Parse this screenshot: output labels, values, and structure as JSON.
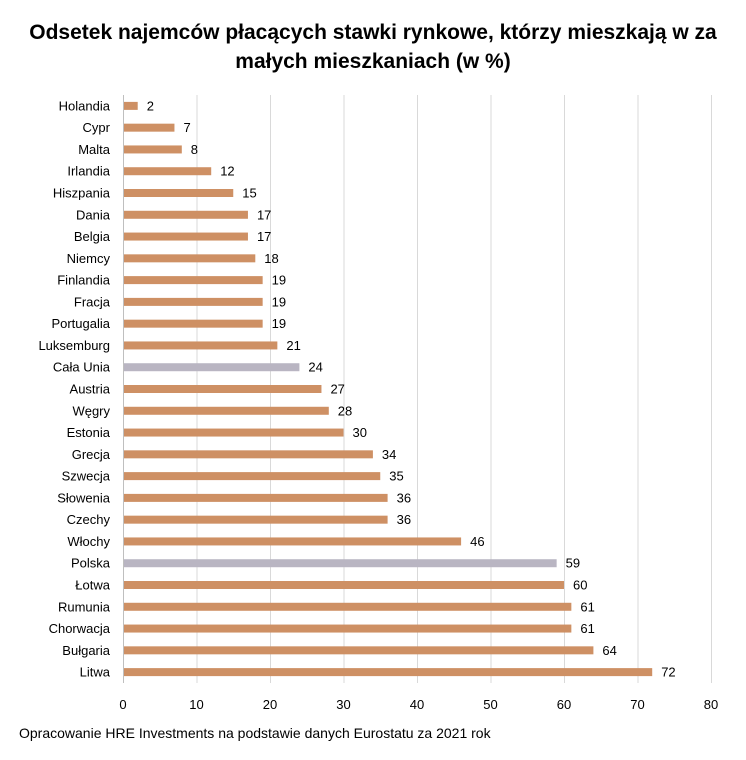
{
  "title_line1": "Odsetek najemców płacących stawki rynkowe, którzy mieszkają w za",
  "title_line2": "małych mieszkaniach (w %)",
  "source": "Opracowanie HRE Investments na podstawie danych Eurostatu za 2021 rok",
  "colors": {
    "bar": "#CE9064",
    "highlight": "#B9B5C2",
    "grid": "#D9D9D9"
  },
  "chart_data": {
    "type": "bar",
    "orientation": "horizontal",
    "title": "Odsetek najemców płacących stawki rynkowe, którzy mieszkają w za małych mieszkaniach (w %)",
    "categories": [
      "Holandia",
      "Cypr",
      "Malta",
      "Irlandia",
      "Hiszpania",
      "Dania",
      "Belgia",
      "Niemcy",
      "Finlandia",
      "Fracja",
      "Portugalia",
      "Luksemburg",
      "Cała Unia",
      "Austria",
      "Węgry",
      "Estonia",
      "Grecja",
      "Szwecja",
      "Słowenia",
      "Czechy",
      "Włochy",
      "Polska",
      "Łotwa",
      "Rumunia",
      "Chorwacja",
      "Bułgaria",
      "Litwa"
    ],
    "values": [
      2,
      7,
      8,
      12,
      15,
      17,
      17,
      18,
      19,
      19,
      19,
      21,
      24,
      27,
      28,
      30,
      34,
      35,
      36,
      36,
      46,
      59,
      60,
      61,
      61,
      64,
      72
    ],
    "highlighted": [
      "Cała Unia",
      "Polska"
    ],
    "xlim": [
      0,
      80
    ],
    "xticks": [
      0,
      10,
      20,
      30,
      40,
      50,
      60,
      70,
      80
    ],
    "grid": true,
    "legend": "none"
  }
}
